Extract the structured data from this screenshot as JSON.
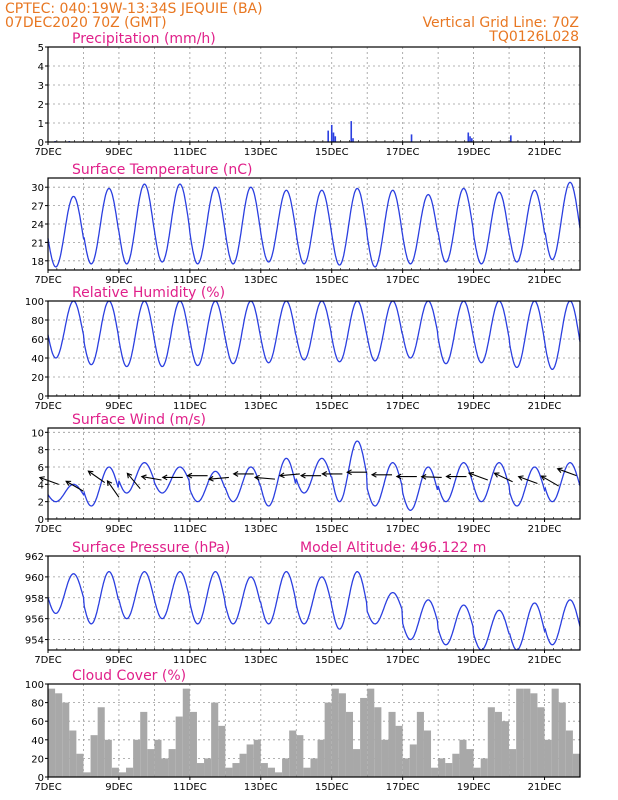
{
  "header": {
    "station": "CPTEC:   040:19W-13:34S   JEQUIE (BA)",
    "run": "07DEC2020 70Z (GMT)",
    "vertical_grid": "Vertical Grid Line: 70Z",
    "product_code": "TQ0126L028"
  },
  "colors": {
    "header": "#e87722",
    "title": "#e0208a",
    "line": "#2b3fe0",
    "cloud": "#a8a8a8",
    "arrow": "#000000"
  },
  "chart_data": [
    {
      "type": "bar",
      "title": "Precipitation (mm/h)",
      "x_range_days": [
        7,
        22
      ],
      "x_tick_labels": [
        "7DEC",
        "9DEC",
        "11DEC",
        "13DEC",
        "15DEC",
        "17DEC",
        "19DEC",
        "21DEC"
      ],
      "ylim": [
        0,
        5
      ],
      "y_ticks": [
        0,
        1,
        2,
        3,
        4,
        5
      ],
      "grid": true,
      "x": [
        7.2,
        7.6,
        14.9,
        15.0,
        15.05,
        15.1,
        15.55,
        15.6,
        17.25,
        18.85,
        18.9,
        18.95,
        20.05
      ],
      "values": [
        0.05,
        0.05,
        0.6,
        0.9,
        0.5,
        0.3,
        1.1,
        0.2,
        0.4,
        0.5,
        0.3,
        0.2,
        0.35
      ]
    },
    {
      "type": "line",
      "title": "Surface Temperature (nC)",
      "x_range_days": [
        7,
        22
      ],
      "x_tick_labels": [
        "7DEC",
        "9DEC",
        "11DEC",
        "13DEC",
        "15DEC",
        "17DEC",
        "19DEC",
        "21DEC"
      ],
      "ylim": [
        16.5,
        31.5
      ],
      "y_ticks": [
        18,
        21,
        24,
        27,
        30
      ],
      "grid": true,
      "daily_min": [
        17.0,
        17.5,
        17.5,
        17.8,
        17.5,
        17.5,
        17.8,
        17.5,
        17.3,
        17.0,
        17.5,
        17.8,
        17.5,
        17.8,
        18.2
      ],
      "daily_max": [
        28.5,
        29.8,
        30.5,
        30.5,
        30.0,
        30.0,
        29.5,
        29.5,
        29.8,
        29.5,
        28.8,
        29.8,
        29.2,
        29.5,
        30.8
      ]
    },
    {
      "type": "line",
      "title": "Relative Humidity (%)",
      "x_range_days": [
        7,
        22
      ],
      "x_tick_labels": [
        "7DEC",
        "9DEC",
        "11DEC",
        "13DEC",
        "15DEC",
        "17DEC",
        "19DEC",
        "21DEC"
      ],
      "ylim": [
        0,
        100
      ],
      "y_ticks": [
        0,
        20,
        40,
        60,
        80,
        100
      ],
      "grid": true,
      "daily_min": [
        40,
        33,
        31,
        31,
        32,
        34,
        35,
        38,
        36,
        37,
        40,
        34,
        35,
        30,
        28
      ],
      "daily_max": [
        100,
        100,
        100,
        100,
        100,
        100,
        100,
        100,
        100,
        100,
        100,
        100,
        100,
        100,
        100
      ]
    },
    {
      "type": "line",
      "title": "Surface Wind (m/s)",
      "x_range_days": [
        7,
        22
      ],
      "x_tick_labels": [
        "7DEC",
        "9DEC",
        "11DEC",
        "13DEC",
        "15DEC",
        "17DEC",
        "19DEC",
        "21DEC"
      ],
      "ylim": [
        0,
        10.5
      ],
      "y_ticks": [
        0,
        2,
        4,
        6,
        8,
        10
      ],
      "grid": true,
      "daily_min": [
        2.0,
        1.5,
        3.0,
        3.0,
        2.0,
        2.0,
        1.5,
        3.0,
        2.0,
        1.5,
        1.0,
        2.0,
        2.0,
        1.5,
        2.0
      ],
      "daily_max": [
        4.0,
        6.0,
        6.5,
        6.0,
        5.5,
        6.0,
        7.0,
        7.0,
        9.0,
        6.5,
        6.0,
        6.5,
        6.5,
        6.0,
        6.5
      ],
      "vectors": [
        {
          "x": 7.3,
          "speed": 4.0,
          "dir_deg": 200
        },
        {
          "x": 8.0,
          "speed": 3.2,
          "dir_deg": 210
        },
        {
          "x": 8.6,
          "speed": 4.2,
          "dir_deg": 215
        },
        {
          "x": 9.0,
          "speed": 2.5,
          "dir_deg": 235
        },
        {
          "x": 9.6,
          "speed": 3.5,
          "dir_deg": 230
        },
        {
          "x": 10.2,
          "speed": 4.5,
          "dir_deg": 190
        },
        {
          "x": 10.8,
          "speed": 4.8,
          "dir_deg": 180
        },
        {
          "x": 11.5,
          "speed": 5.0,
          "dir_deg": 180
        },
        {
          "x": 12.1,
          "speed": 4.8,
          "dir_deg": 175
        },
        {
          "x": 12.8,
          "speed": 5.2,
          "dir_deg": 180
        },
        {
          "x": 13.4,
          "speed": 4.6,
          "dir_deg": 185
        },
        {
          "x": 14.1,
          "speed": 5.2,
          "dir_deg": 175
        },
        {
          "x": 14.7,
          "speed": 5.0,
          "dir_deg": 180
        },
        {
          "x": 15.3,
          "speed": 5.2,
          "dir_deg": 180
        },
        {
          "x": 16.0,
          "speed": 5.4,
          "dir_deg": 180
        },
        {
          "x": 16.7,
          "speed": 5.1,
          "dir_deg": 180
        },
        {
          "x": 17.4,
          "speed": 4.9,
          "dir_deg": 180
        },
        {
          "x": 18.1,
          "speed": 4.8,
          "dir_deg": 182
        },
        {
          "x": 18.8,
          "speed": 4.9,
          "dir_deg": 180
        },
        {
          "x": 19.4,
          "speed": 4.5,
          "dir_deg": 200
        },
        {
          "x": 20.1,
          "speed": 4.3,
          "dir_deg": 205
        },
        {
          "x": 20.8,
          "speed": 4.1,
          "dir_deg": 200
        },
        {
          "x": 21.4,
          "speed": 3.8,
          "dir_deg": 210
        },
        {
          "x": 21.9,
          "speed": 5.0,
          "dir_deg": 200
        }
      ]
    },
    {
      "type": "line",
      "title": "Surface Pressure (hPa)",
      "annotation": "Model Altitude: 496.122 m",
      "x_range_days": [
        7,
        22
      ],
      "x_tick_labels": [
        "7DEC",
        "9DEC",
        "11DEC",
        "13DEC",
        "15DEC",
        "17DEC",
        "19DEC",
        "21DEC"
      ],
      "ylim": [
        953,
        962
      ],
      "y_ticks": [
        954,
        956,
        958,
        960,
        962
      ],
      "grid": true,
      "daily_min": [
        956.5,
        955.5,
        956.0,
        956.0,
        955.5,
        955.5,
        955.5,
        955.5,
        955.0,
        955.5,
        954.0,
        953.5,
        953.0,
        953.0,
        953.5
      ],
      "daily_max": [
        960.3,
        960.5,
        960.5,
        960.5,
        960.5,
        960.0,
        960.5,
        960.0,
        960.5,
        958.5,
        957.8,
        957.3,
        956.8,
        957.5,
        957.8
      ]
    },
    {
      "type": "bar",
      "title": "Cloud Cover (%)",
      "x_range_days": [
        7,
        22
      ],
      "x_tick_labels": [
        "7DEC",
        "9DEC",
        "11DEC",
        "13DEC",
        "15DEC",
        "17DEC",
        "19DEC",
        "21DEC"
      ],
      "ylim": [
        0,
        100
      ],
      "y_ticks": [
        0,
        20,
        40,
        60,
        80,
        100
      ],
      "grid": true,
      "x": [
        7.1,
        7.3,
        7.5,
        7.7,
        7.9,
        8.1,
        8.3,
        8.5,
        8.7,
        8.9,
        9.1,
        9.3,
        9.5,
        9.7,
        9.9,
        10.1,
        10.3,
        10.5,
        10.7,
        10.9,
        11.1,
        11.3,
        11.5,
        11.7,
        11.9,
        12.1,
        12.3,
        12.5,
        12.7,
        12.9,
        13.1,
        13.3,
        13.5,
        13.7,
        13.9,
        14.1,
        14.3,
        14.5,
        14.7,
        14.9,
        15.1,
        15.3,
        15.5,
        15.7,
        15.9,
        16.1,
        16.3,
        16.5,
        16.7,
        16.9,
        17.1,
        17.3,
        17.5,
        17.7,
        17.9,
        18.1,
        18.3,
        18.5,
        18.7,
        18.9,
        19.1,
        19.3,
        19.5,
        19.7,
        19.9,
        20.1,
        20.3,
        20.5,
        20.7,
        20.9,
        21.1,
        21.3,
        21.5,
        21.7,
        21.9
      ],
      "values": [
        95,
        90,
        80,
        50,
        25,
        5,
        45,
        75,
        40,
        10,
        5,
        10,
        40,
        70,
        30,
        40,
        20,
        30,
        65,
        95,
        70,
        15,
        20,
        80,
        55,
        10,
        15,
        25,
        35,
        40,
        15,
        10,
        5,
        20,
        50,
        45,
        10,
        20,
        40,
        80,
        95,
        90,
        70,
        30,
        85,
        95,
        75,
        40,
        70,
        55,
        20,
        35,
        70,
        50,
        10,
        20,
        15,
        25,
        40,
        30,
        10,
        20,
        75,
        70,
        60,
        30,
        95,
        95,
        90,
        75,
        40,
        95,
        80,
        50,
        25
      ]
    }
  ]
}
